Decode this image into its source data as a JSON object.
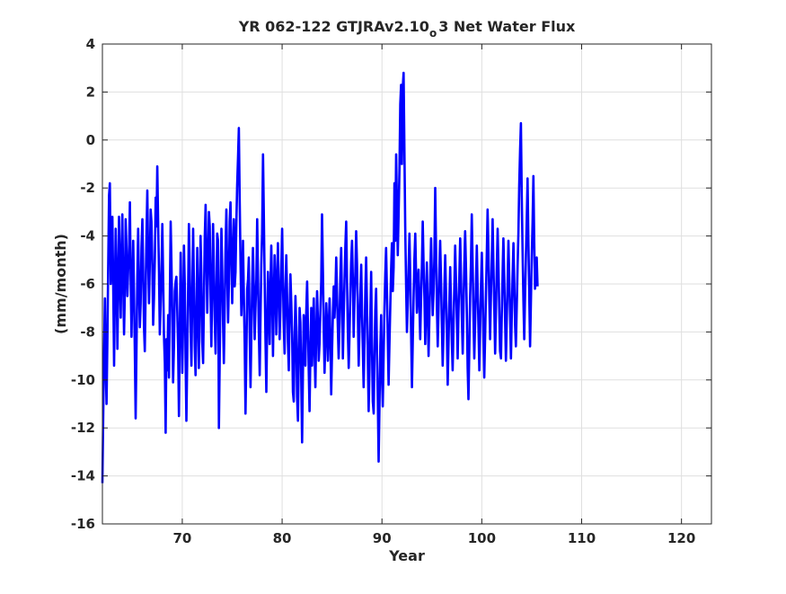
{
  "chart_data": {
    "type": "line",
    "title_main": "YR 062-122 GTJRAv2.10",
    "title_sub": "o",
    "title_end": "3 Net Water Flux",
    "xlabel": "Year",
    "ylabel": "(mm/month)",
    "xlim": [
      62,
      123
    ],
    "ylim": [
      -16,
      4
    ],
    "xticks": [
      70,
      80,
      90,
      100,
      110,
      120
    ],
    "yticks": [
      4,
      2,
      0,
      -2,
      -4,
      -6,
      -8,
      -10,
      -12,
      -14,
      -16
    ],
    "grid": true,
    "line_color": "#0000ff",
    "x_start": 62,
    "x_step": 0.0833333,
    "series": [
      {
        "values": [
          -14.3,
          -11.5,
          -8.6,
          -6.6,
          -9.5,
          -11,
          -8.2,
          -5.1,
          -2.3,
          -1.8,
          -6,
          -4.4,
          -3.2,
          -5.9,
          -9.4,
          -6.3,
          -3.7,
          -5.6,
          -8.7,
          -6.2,
          -3.2,
          -5.5,
          -7.4,
          -5,
          -3.1,
          -6,
          -8.1,
          -6.3,
          -3.3,
          -4.6,
          -6.5,
          -5.4,
          -4.8,
          -2.6,
          -5.8,
          -8.2,
          -6.1,
          -4.2,
          -6.4,
          -8.8,
          -11.6,
          -8.5,
          -5.7,
          -3.7,
          -6.2,
          -7.8,
          -6.8,
          -4.5,
          -3.3,
          -5.4,
          -7.8,
          -8.8,
          -6.1,
          -3.9,
          -2.1,
          -4.8,
          -6.8,
          -5.1,
          -2.9,
          -3.4,
          -5.2,
          -7.7,
          -6.6,
          -4.9,
          -2.4,
          -3.6,
          -1.1,
          -3.6,
          -5.5,
          -8.1,
          -6.9,
          -5.4,
          -3.5,
          -5.7,
          -8.1,
          -9.3,
          -12.2,
          -8.3,
          -9.6,
          -7.3,
          -9.9,
          -6.8,
          -3.4,
          -5.2,
          -7.4,
          -10.1,
          -8.5,
          -6.3,
          -5.9,
          -5.7,
          -7.2,
          -8.7,
          -11.5,
          -8.2,
          -4.7,
          -6.6,
          -9.7,
          -7.7,
          -4.4,
          -6,
          -9.1,
          -11.7,
          -8.9,
          -6.3,
          -3.5,
          -5.5,
          -7.9,
          -9.4,
          -6.6,
          -3.7,
          -6.1,
          -8.6,
          -9.8,
          -7.3,
          -4.5,
          -7,
          -9.5,
          -6.5,
          -4,
          -5.7,
          -8.4,
          -9.3,
          -6.8,
          -4.1,
          -2.7,
          -4.8,
          -7.2,
          -5.4,
          -3,
          -3.6,
          -6.5,
          -8.6,
          -6,
          -3.5,
          -5.3,
          -7.4,
          -8.9,
          -6.6,
          -3.9,
          -4.2,
          -12,
          -9.1,
          -6.2,
          -3.7,
          -5.4,
          -7.6,
          -9.3,
          -6.8,
          -4.5,
          -2.9,
          -5.3,
          -7.6,
          -6,
          -3.4,
          -2.6,
          -5,
          -6.8,
          -4.8,
          -3.3,
          -6.1,
          -5.5,
          -3.5,
          -1.9,
          -0.7,
          0.5,
          -2.4,
          -5.2,
          -7.3,
          -5.9,
          -4.2,
          -6.6,
          -8.5,
          -11.4,
          -9.1,
          -6.2,
          -5.8,
          -4.9,
          -7.9,
          -10.3,
          -8.2,
          -6,
          -4.5,
          -6.2,
          -8.3,
          -7,
          -5.8,
          -3.3,
          -5.6,
          -7.9,
          -9.8,
          -7.4,
          -5.2,
          -3.9,
          -0.6,
          -3.1,
          -5.8,
          -8.2,
          -10.5,
          -7.8,
          -5.5,
          -6.8,
          -8.5,
          -6.1,
          -4.4,
          -6.5,
          -9,
          -6.7,
          -4.8,
          -6.2,
          -8.1,
          -5.9,
          -4.3,
          -6.4,
          -8.3,
          -6.9,
          -5.3,
          -3.7,
          -5.9,
          -7.7,
          -8.9,
          -6.2,
          -4.8,
          -6.5,
          -8.4,
          -9.6,
          -7.2,
          -5.6,
          -6.8,
          -8.1,
          -10.5,
          -10.9,
          -8.3,
          -6.5,
          -7.8,
          -10.7,
          -11.7,
          -8.9,
          -7,
          -7.6,
          -10.1,
          -12.6,
          -9.8,
          -7.3,
          -8.1,
          -9.4,
          -7.2,
          -5.9,
          -7.7,
          -9.6,
          -11.3,
          -8.7,
          -7,
          -9.4,
          -8,
          -6.6,
          -8.8,
          -10.3,
          -8.1,
          -6.3,
          -7.5,
          -9.2,
          -8.5,
          -7.1,
          -5.9,
          -3.1,
          -5.5,
          -7.9,
          -9.7,
          -8.4,
          -6.8,
          -7.7,
          -9.2,
          -7.8,
          -6.6,
          -8.3,
          -10.6,
          -8.9,
          -7.2,
          -6.1,
          -7.4,
          -6.5,
          -4.9,
          -6.4,
          -7.8,
          -9.1,
          -7.6,
          -5.7,
          -4.5,
          -6.8,
          -9.1,
          -7.4,
          -5.9,
          -4.4,
          -3.4,
          -5.8,
          -7.9,
          -9.5,
          -8.1,
          -6.4,
          -5.1,
          -4.2,
          -5.8,
          -8.2,
          -6.7,
          -5.5,
          -3.8,
          -5.1,
          -7.3,
          -9.4,
          -7.9,
          -6.5,
          -5.2,
          -7.1,
          -8.7,
          -10.3,
          -8.4,
          -6.3,
          -4.9,
          -6.8,
          -9.2,
          -11.3,
          -9.6,
          -7.4,
          -5.5,
          -8.6,
          -10.9,
          -11.4,
          -9,
          -7.1,
          -6.2,
          -8.9,
          -10.8,
          -13.4,
          -11.2,
          -8.6,
          -7.3,
          -9.8,
          -11.1,
          -8.9,
          -7,
          -5.6,
          -4.5,
          -6.4,
          -8.3,
          -10.2,
          -8.6,
          -6.9,
          -5.4,
          -4.3,
          -6.3,
          -5.3,
          -1.8,
          -4.2,
          -0.6,
          -2.7,
          -4.8,
          -3.2,
          -1.2,
          1.5,
          2.3,
          -1,
          2.2,
          2.8,
          -0.4,
          -3.6,
          -6.1,
          -8,
          -6.9,
          -5.3,
          -3.9,
          -5.7,
          -7.9,
          -10.3,
          -8.4,
          -6.6,
          -5,
          -3.9,
          -5.6,
          -7.2,
          -6.1,
          -5.4,
          -6.9,
          -8.3,
          -6.7,
          -5.2,
          -3.4,
          -5.1,
          -6.6,
          -8.5,
          -6.9,
          -5.1,
          -7.3,
          -9,
          -7.4,
          -5.8,
          -4.1,
          -5.7,
          -7.3,
          -6.4,
          -4.8,
          -2,
          -4.5,
          -6.8,
          -8.6,
          -7.1,
          -5.4,
          -4.2,
          -5.9,
          -7.7,
          -9.4,
          -7.9,
          -6.2,
          -4.8,
          -6.3,
          -8.1,
          -10.2,
          -8.5,
          -6.8,
          -5.3,
          -6.9,
          -8.4,
          -9.6,
          -7.7,
          -6.1,
          -4.4,
          -5.8,
          -7.5,
          -9.1,
          -7.2,
          -5.6,
          -4.1,
          -5.7,
          -7.3,
          -8.9,
          -7,
          -5.2,
          -3.8,
          -5.4,
          -7.2,
          -9.5,
          -10.8,
          -8.6,
          -6.5,
          -5.1,
          -3.1,
          -5.3,
          -7.4,
          -9.1,
          -7.5,
          -5.9,
          -4.4,
          -6.1,
          -7.9,
          -9.6,
          -7.8,
          -6.2,
          -4.7,
          -6.3,
          -8.2,
          -9.9,
          -8.1,
          -6.4,
          -4.8,
          -2.9,
          -4.7,
          -6.6,
          -8.3,
          -6.5,
          -4.9,
          -3.3,
          -5.2,
          -7.1,
          -8.9,
          -7.2,
          -5.4,
          -3.7,
          -5.3,
          -7.1,
          -8.8,
          -9.1,
          -7.3,
          -5.6,
          -4.1,
          -5.8,
          -7.5,
          -9.2,
          -7.6,
          -5.9,
          -4.2,
          -5.7,
          -7.4,
          -9.1,
          -7.4,
          -5.7,
          -4.3,
          -5.9,
          -7.7,
          -8.6,
          -6.9,
          -5.3,
          -3.9,
          -1.9,
          -0.4,
          0.7,
          -2.3,
          -4.5,
          -6.7,
          -8.3,
          -6.5,
          -4.8,
          -3.3,
          -1.6,
          -4.1,
          -6.5,
          -8.6,
          -6.8,
          -5,
          -3.4,
          -1.5,
          -4.2,
          -6.2,
          -5.7,
          -4.9,
          -6.1
        ]
      }
    ]
  }
}
